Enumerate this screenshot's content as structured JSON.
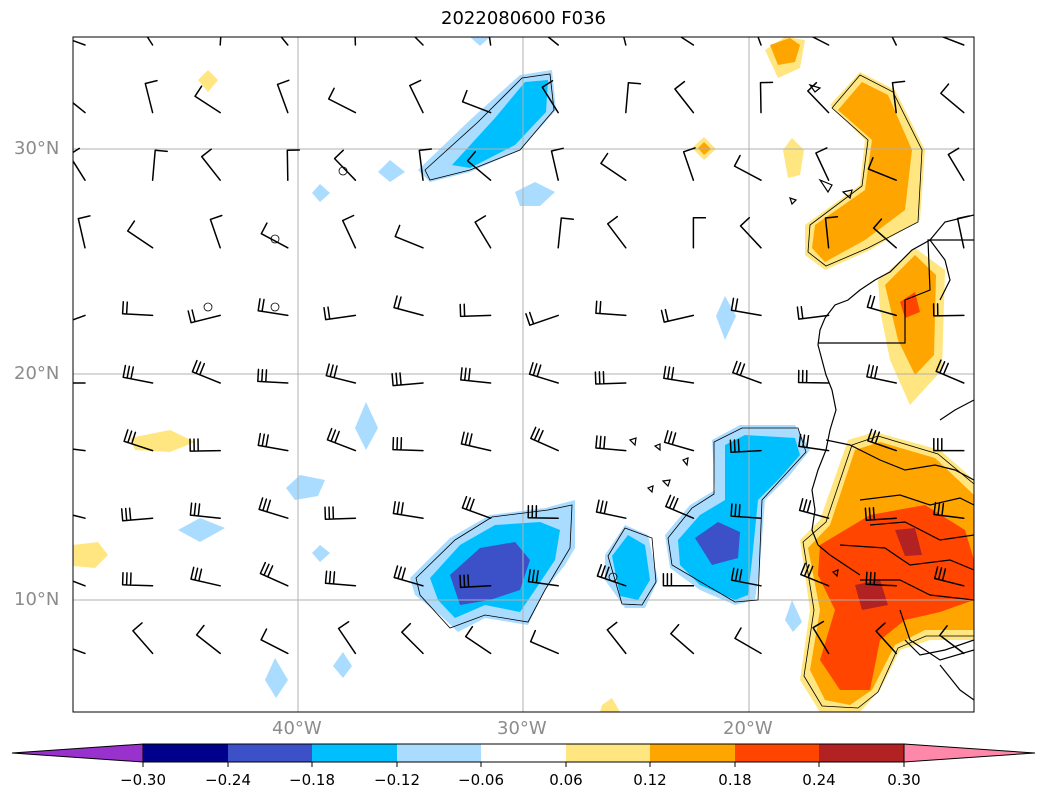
{
  "title": "2022080600 F036",
  "map": {
    "lat_labels": [
      "30°N",
      "20°N",
      "10°N"
    ],
    "lon_labels": [
      "40°W",
      "30°W",
      "20°W"
    ],
    "grid": true
  },
  "colorbar": {
    "tick_labels": [
      "−0.30",
      "−0.24",
      "−0.18",
      "−0.12",
      "−0.06",
      "0.06",
      "0.12",
      "0.18",
      "0.24",
      "0.30"
    ],
    "colors": [
      "#9932cc",
      "#00008b",
      "#3c50c8",
      "#00bfff",
      "#aadcff",
      "#ffffff",
      "#ffe680",
      "#ffa500",
      "#ff4500",
      "#b22222",
      "#ff88aa"
    ]
  }
}
